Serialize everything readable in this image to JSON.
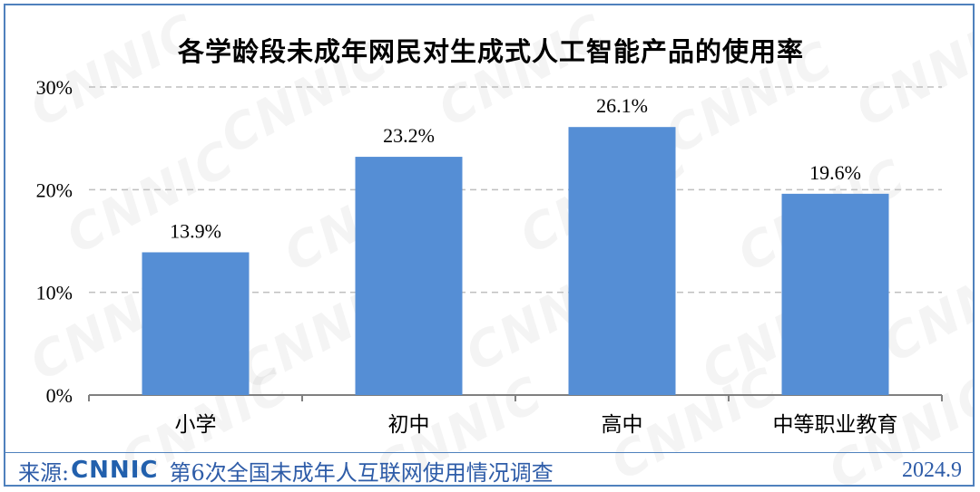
{
  "chart_data": {
    "type": "bar",
    "title": "各学龄段未成年网民对生成式人工智能产品的使用率",
    "categories": [
      "小学",
      "初中",
      "高中",
      "中等职业教育"
    ],
    "values": [
      13.9,
      23.2,
      26.1,
      19.6
    ],
    "value_labels": [
      "13.9%",
      "23.2%",
      "26.1%",
      "19.6%"
    ],
    "yticks": [
      {
        "value": 0,
        "label": "0%"
      },
      {
        "value": 10,
        "label": "10%"
      },
      {
        "value": 20,
        "label": "20%"
      },
      {
        "value": 30,
        "label": "30%"
      }
    ],
    "ylim": [
      0,
      30
    ],
    "grid": true,
    "bar_color": "#558ed5"
  },
  "watermark": "CNNIC",
  "footer": {
    "source_label": "来源:",
    "logo_text": "CNNIC",
    "survey": "第6次全国未成年人互联网使用情况调查",
    "date": "2024.9"
  },
  "colors": {
    "frame": "#4f81bd",
    "footer_text": "#2e5ca8"
  }
}
